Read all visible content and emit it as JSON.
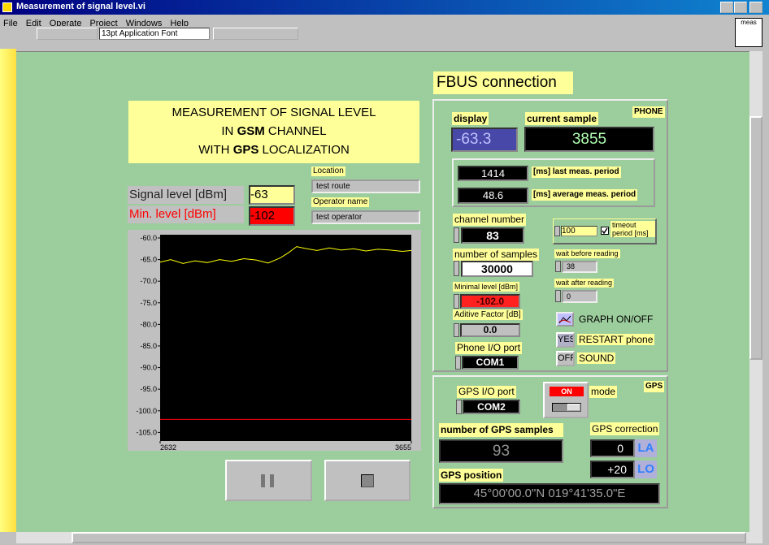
{
  "window": {
    "title": "Measurement of signal level.vi",
    "menu": [
      "File",
      "Edit",
      "Operate",
      "Project",
      "Windows",
      "Help"
    ],
    "font_selector": "13pt Application Font",
    "corner_icon": "meas"
  },
  "panel": {
    "header": "FBUS connection",
    "title_lines": [
      [
        "MEASUREMENT OF SIGNAL LEVEL"
      ],
      [
        "IN ",
        "GSM",
        " CHANNEL"
      ],
      [
        "WITH ",
        "GPS",
        " LOCALIZATION"
      ]
    ],
    "signal_level": {
      "label": "Signal level [dBm]",
      "value": "-63"
    },
    "min_level": {
      "label": "Min. level [dBm]",
      "value": "-102"
    },
    "location": {
      "label": "Location",
      "value": "test route"
    },
    "operator": {
      "label": "Operator name",
      "value": "test operator"
    },
    "phone": {
      "title": "PHONE",
      "display": {
        "label": "display",
        "value": "-63.3"
      },
      "current_sample": {
        "label": "current sample",
        "value": "3855"
      },
      "last_period": {
        "label": "[ms] last meas. period",
        "value": "1414"
      },
      "average_period": {
        "label": "[ms] average meas. period",
        "value": "48.6"
      },
      "channel": {
        "label": "channel number",
        "value": "83"
      },
      "timeout": {
        "label": "timeout period [ms]",
        "value": "100"
      },
      "samples": {
        "label": "number of samples",
        "value": "30000"
      },
      "wait_before": {
        "label": "wait before reading",
        "value": "38"
      },
      "minimal_level": {
        "label": "Minimal level [dBm]",
        "value": "-102.0"
      },
      "wait_after": {
        "label": "wait after reading",
        "value": "0"
      },
      "additive": {
        "label": "Aditive Factor [dB]",
        "value": "0.0"
      },
      "graph": {
        "label": "GRAPH ON/OFF"
      },
      "restart": {
        "button": "YES",
        "label": "RESTART phone"
      },
      "port": {
        "label": "Phone I/O port",
        "value": "COM1"
      },
      "sound": {
        "button": "OFF",
        "label": "SOUND"
      }
    },
    "gps": {
      "title": "GPS",
      "port": {
        "label": "GPS I/O port",
        "value": "COM2"
      },
      "mode": {
        "switch": "ON",
        "label": "mode"
      },
      "samples": {
        "label": "number of GPS samples",
        "value": "93"
      },
      "correction": {
        "label": "GPS correction",
        "la": {
          "value": "0",
          "unit": "LA"
        },
        "lo": {
          "value": "+20",
          "unit": "LO"
        }
      },
      "position": {
        "label": "GPS position",
        "value": "45°00'00.0\"N 019°41'35.0\"E"
      }
    }
  },
  "chart_data": {
    "type": "line",
    "x": [
      2632,
      2675,
      2725,
      2774,
      2824,
      2874,
      2923,
      2973,
      3023,
      3072,
      3122,
      3155,
      3188,
      3221,
      3271,
      3321,
      3370,
      3420,
      3470,
      3519,
      3569,
      3619,
      3655
    ],
    "series": [
      {
        "color": "#ffff00",
        "values": [
          -65.6,
          -65.0,
          -65.9,
          -65.3,
          -65.7,
          -65.0,
          -65.4,
          -64.8,
          -65.1,
          -65.8,
          -64.6,
          -63.4,
          -62.0,
          -62.4,
          -62.9,
          -62.3,
          -62.8,
          -62.5,
          -63.0,
          -62.6,
          -62.8,
          -63.1,
          -62.9
        ]
      },
      {
        "color": "#ff0000",
        "values": [
          -102,
          -102,
          -102,
          -102,
          -102,
          -102,
          -102,
          -102,
          -102,
          -102,
          -102,
          -102,
          -102,
          -102,
          -102,
          -102,
          -102,
          -102,
          -102,
          -102,
          -102,
          -102,
          -102
        ]
      }
    ],
    "xlim": [
      2632,
      3655
    ],
    "xticks": [
      2632,
      3655
    ],
    "ylim": [
      -107,
      -59.25
    ],
    "yticks": [
      {
        "value": -60,
        "label": "-60.0"
      },
      {
        "value": -65,
        "label": "-65.0"
      },
      {
        "value": -70,
        "label": "-70.0"
      },
      {
        "value": -75,
        "label": "-75.0"
      },
      {
        "value": -80,
        "label": "-80.0"
      },
      {
        "value": -85,
        "label": "-85.0"
      },
      {
        "value": -90,
        "label": "-90.0"
      },
      {
        "value": -95,
        "label": "-95.0"
      },
      {
        "value": -100,
        "label": "-100.0"
      },
      {
        "value": -105,
        "label": "-105.0"
      }
    ],
    "background": "#000000"
  }
}
